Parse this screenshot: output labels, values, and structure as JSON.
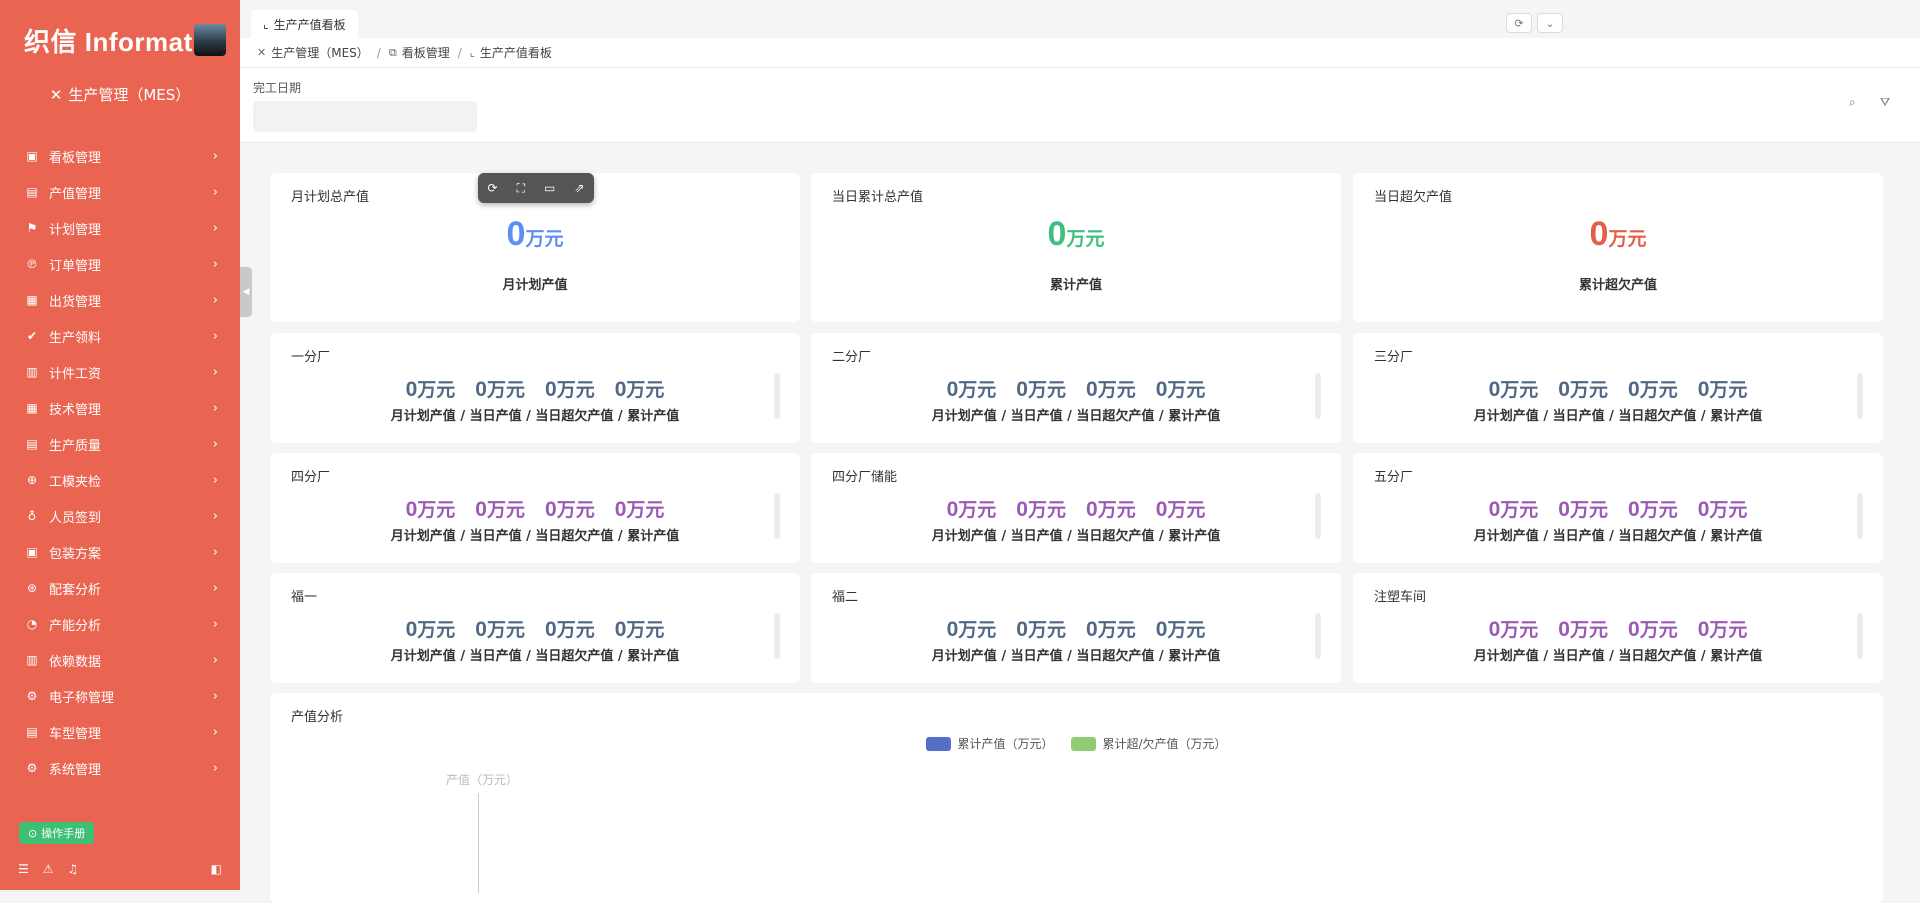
{
  "colors": {
    "sidebar_bg": "#ea6452",
    "blue": "#5b8ff0",
    "green": "#3fbf7f",
    "red": "#e25f49",
    "slate": "#506786",
    "purple": "#9b59b6",
    "legend_blue": "#5470c6",
    "legend_green": "#91cc75"
  },
  "sidebar": {
    "brand": "织信 Informat",
    "module_title": "生产管理（MES）",
    "items": [
      {
        "label": "看板管理",
        "icon": "dashboard-icon"
      },
      {
        "label": "产值管理",
        "icon": "chart-icon"
      },
      {
        "label": "计划管理",
        "icon": "flag-icon"
      },
      {
        "label": "订单管理",
        "icon": "order-icon"
      },
      {
        "label": "出货管理",
        "icon": "shipping-icon"
      },
      {
        "label": "生产领料",
        "icon": "material-icon"
      },
      {
        "label": "计件工资",
        "icon": "calculator-icon"
      },
      {
        "label": "技术管理",
        "icon": "tech-icon"
      },
      {
        "label": "生产质量",
        "icon": "quality-icon"
      },
      {
        "label": "工模夹检",
        "icon": "inspect-icon"
      },
      {
        "label": "人员签到",
        "icon": "person-icon"
      },
      {
        "label": "包装方案",
        "icon": "package-icon"
      },
      {
        "label": "配套分析",
        "icon": "analysis-icon"
      },
      {
        "label": "产能分析",
        "icon": "capacity-icon"
      },
      {
        "label": "依赖数据",
        "icon": "data-icon"
      },
      {
        "label": "电子称管理",
        "icon": "scale-icon"
      },
      {
        "label": "车型管理",
        "icon": "car-icon"
      },
      {
        "label": "系统管理",
        "icon": "gear-icon"
      }
    ],
    "manual_label": "操作手册"
  },
  "tab": {
    "label": "生产产值看板"
  },
  "breadcrumb": [
    "生产管理（MES）",
    "看板管理",
    "生产产值看板"
  ],
  "filter": {
    "label": "完工日期",
    "placeholder": ""
  },
  "summary": [
    {
      "title": "月计划总产值",
      "value": "0",
      "unit": "万元",
      "sub": "月计划产值",
      "color": "#5b8ff0"
    },
    {
      "title": "当日累计总产值",
      "value": "0",
      "unit": "万元",
      "sub": "累计产值",
      "color": "#3fbf7f"
    },
    {
      "title": "当日超欠产值",
      "value": "0",
      "unit": "万元",
      "sub": "累计超欠产值",
      "color": "#e25f49"
    }
  ],
  "factory_sub": "月计划产值 / 当日产值 / 当日超欠产值 / 累计产值",
  "factories": [
    {
      "title": "一分厂",
      "values": [
        "0",
        "0",
        "0",
        "0"
      ],
      "unit": "万元",
      "color": "#506786"
    },
    {
      "title": "二分厂",
      "values": [
        "0",
        "0",
        "0",
        "0"
      ],
      "unit": "万元",
      "color": "#506786"
    },
    {
      "title": "三分厂",
      "values": [
        "0",
        "0",
        "0",
        "0"
      ],
      "unit": "万元",
      "color": "#506786"
    },
    {
      "title": "四分厂",
      "values": [
        "0",
        "0",
        "0",
        "0"
      ],
      "unit": "万元",
      "color": "#9b59b6"
    },
    {
      "title": "四分厂储能",
      "values": [
        "0",
        "0",
        "0",
        "0"
      ],
      "unit": "万元",
      "color": "#9b59b6"
    },
    {
      "title": "五分厂",
      "values": [
        "0",
        "0",
        "0",
        "0"
      ],
      "unit": "万元",
      "color": "#9b59b6"
    },
    {
      "title": "福一",
      "values": [
        "0",
        "0",
        "0",
        "0"
      ],
      "unit": "万元",
      "color": "#506786"
    },
    {
      "title": "福二",
      "values": [
        "0",
        "0",
        "0",
        "0"
      ],
      "unit": "万元",
      "color": "#506786"
    },
    {
      "title": "注塑车间",
      "values": [
        "0",
        "0",
        "0",
        "0"
      ],
      "unit": "万元",
      "color": "#9b59b6"
    }
  ],
  "chart": {
    "title": "产值分析",
    "legend": [
      {
        "label": "累计产值（万元）",
        "color": "#5470c6"
      },
      {
        "label": "累计超/欠产值（万元）",
        "color": "#91cc75"
      }
    ],
    "ylabel": "产值（万元）"
  }
}
